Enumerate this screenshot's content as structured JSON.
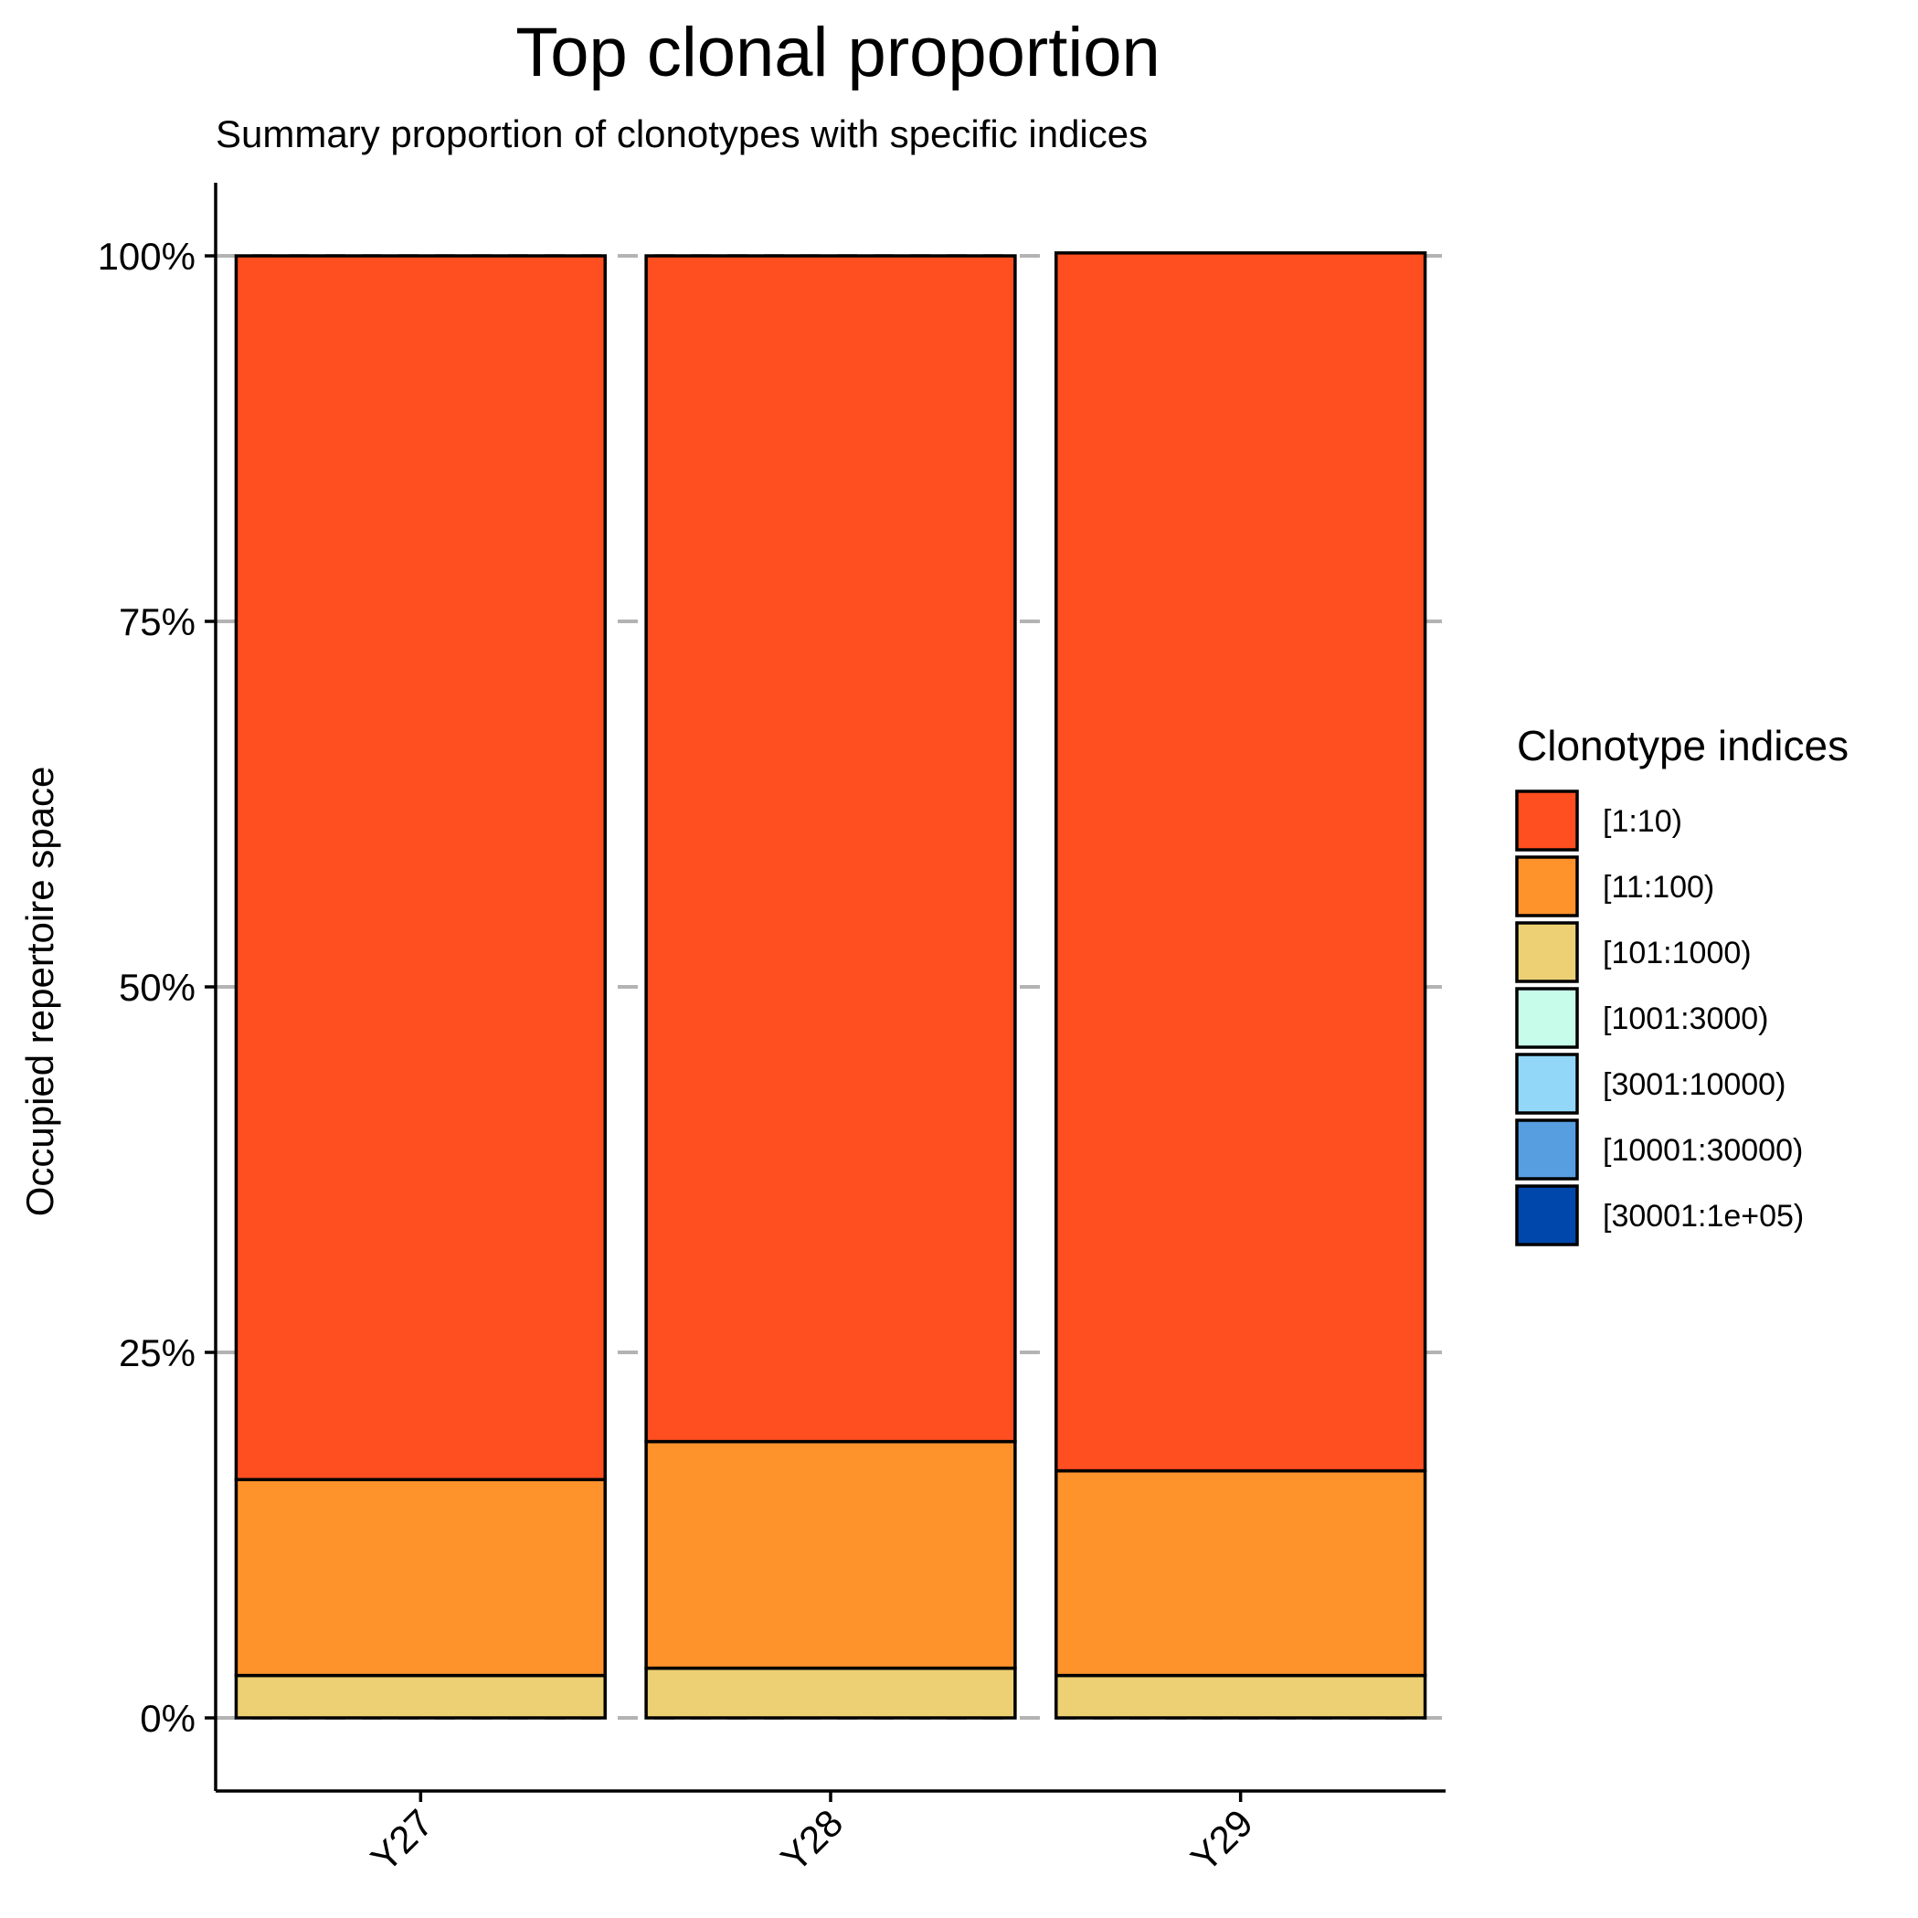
{
  "chart_data": {
    "type": "bar",
    "stacked": true,
    "title": "Top clonal proportion",
    "subtitle": "Summary proportion of clonotypes with specific indices",
    "ylabel": "Occupied repertoire space",
    "xlabel": "",
    "categories": [
      "Y27",
      "Y28",
      "Y29"
    ],
    "ylim": [
      -0.05,
      1.05
    ],
    "yticks": [
      {
        "value": 0,
        "label": "0%"
      },
      {
        "value": 0.25,
        "label": "25%"
      },
      {
        "value": 0.5,
        "label": "50%"
      },
      {
        "value": 0.75,
        "label": "75%"
      },
      {
        "value": 1,
        "label": "100%"
      }
    ],
    "grid": "horizontal dashed",
    "legend": {
      "title": "Clonotype indices",
      "position": "right"
    },
    "series": [
      {
        "name": "[1:10)",
        "color": "#FF4E20",
        "values": [
          0.837,
          0.811,
          0.833
        ]
      },
      {
        "name": "[11:100)",
        "color": "#FE932C",
        "values": [
          0.134,
          0.155,
          0.14
        ]
      },
      {
        "name": "[101:1000)",
        "color": "#EDD074",
        "values": [
          0.029,
          0.034,
          0.029
        ]
      },
      {
        "name": "[1001:3000)",
        "color": "#C7FBEA",
        "values": [
          0,
          0,
          0
        ]
      },
      {
        "name": "[3001:10000)",
        "color": "#93D7F8",
        "values": [
          0,
          0,
          0
        ]
      },
      {
        "name": "[10001:30000)",
        "color": "#579EE1",
        "values": [
          0,
          0,
          0
        ]
      },
      {
        "name": "[30001:1e+05)",
        "color": "#0047AB",
        "values": [
          0,
          0,
          0
        ]
      }
    ]
  }
}
